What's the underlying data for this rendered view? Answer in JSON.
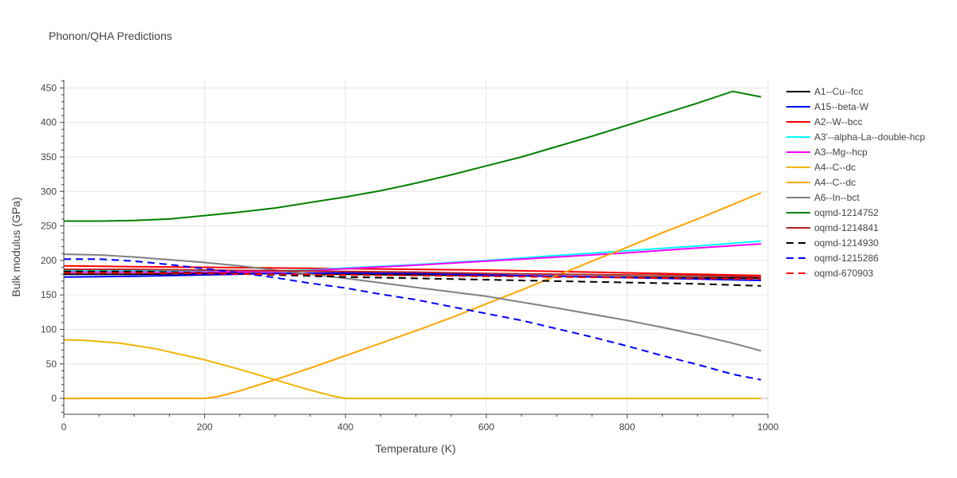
{
  "chart_data": {
    "type": "line",
    "title": "Phonon/QHA Predictions",
    "xlabel": "Temperature (K)",
    "ylabel": "Bulk modulus (GPa)",
    "xlim": [
      0,
      1000
    ],
    "ylim": [
      -23,
      462
    ],
    "xticks": [
      0,
      200,
      400,
      600,
      800,
      1000
    ],
    "yticks": [
      0,
      50,
      100,
      150,
      200,
      250,
      300,
      350,
      400,
      450
    ],
    "grid": true,
    "legend_position": "right",
    "series": [
      {
        "name": "A1--Cu--fcc",
        "color": "#000000",
        "dash": "solid",
        "x": [
          0,
          100,
          200,
          300,
          400,
          500,
          600,
          700,
          800,
          900,
          990
        ],
        "y": [
          180,
          180,
          181,
          181,
          180,
          179,
          178,
          177,
          176,
          175,
          174
        ]
      },
      {
        "name": "A15--beta-W",
        "color": "#0000ff",
        "dash": "solid",
        "x": [
          0,
          100,
          200,
          300,
          400,
          500,
          600,
          700,
          800,
          900,
          990
        ],
        "y": [
          176,
          177,
          179,
          181,
          182,
          181,
          179,
          177,
          175,
          173,
          171
        ]
      },
      {
        "name": "A2--W--bcc",
        "color": "#ff0000",
        "dash": "solid",
        "x": [
          0,
          100,
          200,
          300,
          400,
          500,
          600,
          700,
          800,
          900,
          990
        ],
        "y": [
          192,
          191,
          190,
          189,
          188,
          187,
          186,
          184,
          182,
          180,
          178
        ]
      },
      {
        "name": "A3'--alpha-La--double-hcp",
        "color": "#00ffff",
        "dash": "solid",
        "x": [
          0,
          100,
          200,
          300,
          350,
          400,
          500,
          600,
          700,
          800,
          900,
          990
        ],
        "y": [
          185,
          185,
          185,
          185,
          186,
          189,
          194,
          200,
          207,
          214,
          221,
          228
        ]
      },
      {
        "name": "A3--Mg--hcp",
        "color": "#ff00ff",
        "dash": "solid",
        "x": [
          0,
          100,
          200,
          300,
          350,
          400,
          500,
          600,
          700,
          800,
          900,
          990
        ],
        "y": [
          183,
          183,
          183,
          184,
          185,
          188,
          193,
          199,
          205,
          211,
          218,
          224
        ]
      },
      {
        "name": "A4--C--dc",
        "color": "#f0b400",
        "dash": "solid",
        "x": [
          0,
          30,
          80,
          130,
          200,
          250,
          300,
          350,
          380,
          400,
          450,
          600,
          800,
          990
        ],
        "y": [
          85,
          84,
          80,
          72,
          56,
          42,
          27,
          12,
          4,
          0,
          0,
          0,
          0,
          0
        ]
      },
      {
        "name": "A4--C--dc",
        "color": "#ffa500",
        "dash": "solid",
        "x": [
          0,
          150,
          200,
          220,
          250,
          300,
          350,
          400,
          450,
          500,
          550,
          600,
          650,
          700,
          750,
          800,
          850,
          900,
          950,
          990
        ],
        "y": [
          0,
          0,
          0,
          3,
          11,
          27,
          44,
          62,
          80,
          98,
          117,
          137,
          157,
          178,
          199,
          219,
          240,
          260,
          281,
          298
        ]
      },
      {
        "name": "A6--In--bct",
        "color": "#808080",
        "dash": "solid",
        "x": [
          0,
          50,
          100,
          150,
          200,
          250,
          300,
          400,
          500,
          600,
          700,
          800,
          850,
          900,
          950,
          990
        ],
        "y": [
          209,
          208,
          205,
          201,
          197,
          192,
          186,
          174,
          161,
          148,
          131,
          113,
          103,
          92,
          80,
          69
        ]
      },
      {
        "name": "oqmd-1214752",
        "color": "#008000",
        "dash": "solid",
        "x": [
          0,
          50,
          100,
          150,
          200,
          250,
          300,
          350,
          400,
          450,
          500,
          550,
          600,
          650,
          700,
          750,
          800,
          850,
          900,
          950,
          990
        ],
        "y": [
          257,
          257,
          258,
          260,
          265,
          270,
          276,
          284,
          292,
          301,
          312,
          324,
          337,
          350,
          365,
          380,
          396,
          412,
          428,
          445,
          437
        ]
      },
      {
        "name": "oqmd-1214841",
        "color": "#b22222",
        "dash": "solid",
        "x": [
          0,
          100,
          200,
          300,
          400,
          500,
          600,
          700,
          800,
          900,
          990
        ],
        "y": [
          187,
          187,
          186,
          185,
          184,
          183,
          181,
          180,
          179,
          178,
          176
        ]
      },
      {
        "name": "oqmd-1214930",
        "color": "#000000",
        "dash": "dash",
        "x": [
          0,
          100,
          200,
          300,
          400,
          500,
          600,
          700,
          800,
          900,
          990
        ],
        "y": [
          184,
          184,
          182,
          179,
          176,
          174,
          172,
          170,
          168,
          166,
          163
        ]
      },
      {
        "name": "oqmd-1215286",
        "color": "#0000ff",
        "dash": "dash",
        "x": [
          0,
          50,
          100,
          150,
          200,
          250,
          300,
          350,
          400,
          450,
          500,
          550,
          600,
          650,
          700,
          750,
          800,
          850,
          900,
          950,
          990
        ],
        "y": [
          202,
          202,
          199,
          194,
          188,
          182,
          175,
          167,
          160,
          151,
          143,
          133,
          123,
          113,
          101,
          89,
          76,
          62,
          49,
          35,
          27
        ]
      },
      {
        "name": "oqmd-670903",
        "color": "#ff0000",
        "dash": "dash",
        "x": [
          0,
          100,
          200,
          300,
          400,
          500,
          600,
          700,
          800,
          900,
          990
        ],
        "y": [
          182,
          182,
          181,
          180,
          179,
          178,
          177,
          176,
          175,
          174,
          173
        ]
      }
    ]
  }
}
